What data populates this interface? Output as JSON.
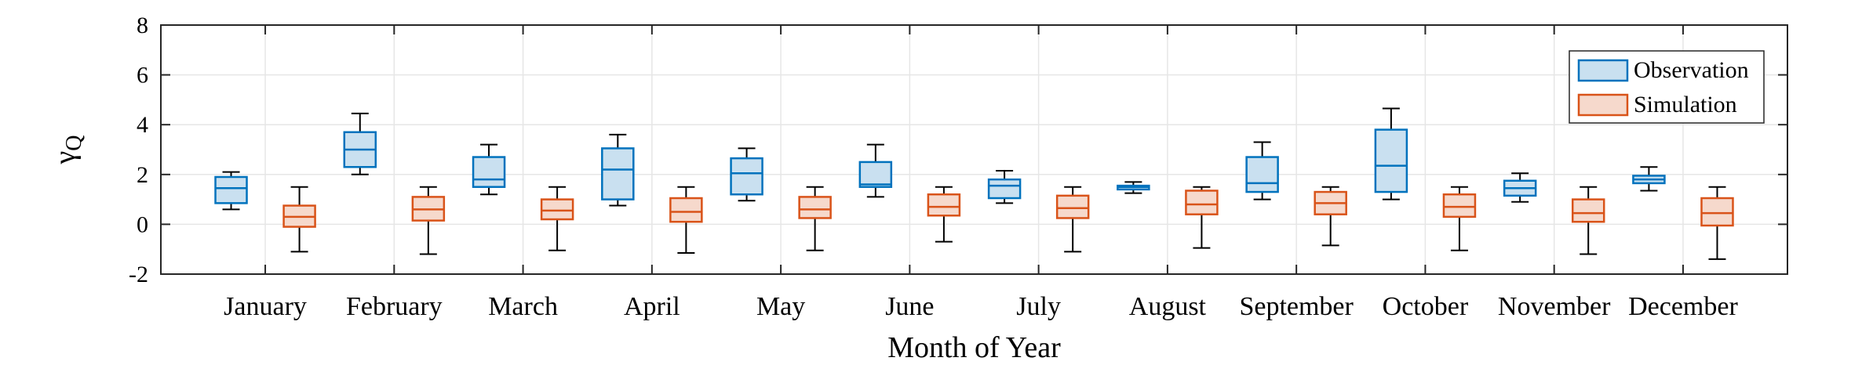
{
  "chart_data": {
    "type": "box",
    "title": "",
    "xlabel": "Month of Year",
    "ylabel_main": "γ",
    "ylabel_sub": "Q",
    "ylim": [
      -2,
      8
    ],
    "yticks": [
      -2,
      0,
      2,
      4,
      6,
      8
    ],
    "grid": true,
    "legend_position": "top-right",
    "categories": [
      "January",
      "February",
      "March",
      "April",
      "May",
      "June",
      "July",
      "August",
      "September",
      "October",
      "November",
      "December"
    ],
    "series": [
      {
        "name": "Observation",
        "stroke": "#0072BD",
        "fill": "#C9E0F0",
        "boxes": [
          {
            "whisker_low": 0.6,
            "q1": 0.85,
            "median": 1.45,
            "q3": 1.9,
            "whisker_high": 2.1
          },
          {
            "whisker_low": 2.0,
            "q1": 2.3,
            "median": 3.0,
            "q3": 3.7,
            "whisker_high": 4.45
          },
          {
            "whisker_low": 1.2,
            "q1": 1.5,
            "median": 1.8,
            "q3": 2.7,
            "whisker_high": 3.2
          },
          {
            "whisker_low": 0.75,
            "q1": 1.0,
            "median": 2.2,
            "q3": 3.05,
            "whisker_high": 3.6
          },
          {
            "whisker_low": 0.95,
            "q1": 1.2,
            "median": 2.05,
            "q3": 2.65,
            "whisker_high": 3.05
          },
          {
            "whisker_low": 1.1,
            "q1": 1.5,
            "median": 1.6,
            "q3": 2.5,
            "whisker_high": 3.2
          },
          {
            "whisker_low": 0.85,
            "q1": 1.05,
            "median": 1.55,
            "q3": 1.8,
            "whisker_high": 2.15
          },
          {
            "whisker_low": 1.25,
            "q1": 1.4,
            "median": 1.5,
            "q3": 1.55,
            "whisker_high": 1.7
          },
          {
            "whisker_low": 1.0,
            "q1": 1.3,
            "median": 1.65,
            "q3": 2.7,
            "whisker_high": 3.3
          },
          {
            "whisker_low": 1.0,
            "q1": 1.3,
            "median": 2.35,
            "q3": 3.8,
            "whisker_high": 4.65
          },
          {
            "whisker_low": 0.9,
            "q1": 1.15,
            "median": 1.45,
            "q3": 1.75,
            "whisker_high": 2.05
          },
          {
            "whisker_low": 1.35,
            "q1": 1.65,
            "median": 1.8,
            "q3": 1.95,
            "whisker_high": 2.3
          }
        ]
      },
      {
        "name": "Simulation",
        "stroke": "#D95319",
        "fill": "#F6D9CC",
        "boxes": [
          {
            "whisker_low": -1.1,
            "q1": -0.1,
            "median": 0.3,
            "q3": 0.75,
            "whisker_high": 1.5
          },
          {
            "whisker_low": -1.2,
            "q1": 0.15,
            "median": 0.6,
            "q3": 1.1,
            "whisker_high": 1.5
          },
          {
            "whisker_low": -1.05,
            "q1": 0.2,
            "median": 0.55,
            "q3": 1.0,
            "whisker_high": 1.5
          },
          {
            "whisker_low": -1.15,
            "q1": 0.1,
            "median": 0.5,
            "q3": 1.05,
            "whisker_high": 1.5
          },
          {
            "whisker_low": -1.05,
            "q1": 0.25,
            "median": 0.6,
            "q3": 1.1,
            "whisker_high": 1.5
          },
          {
            "whisker_low": -0.7,
            "q1": 0.35,
            "median": 0.7,
            "q3": 1.2,
            "whisker_high": 1.5
          },
          {
            "whisker_low": -1.1,
            "q1": 0.25,
            "median": 0.65,
            "q3": 1.15,
            "whisker_high": 1.5
          },
          {
            "whisker_low": -0.95,
            "q1": 0.4,
            "median": 0.8,
            "q3": 1.35,
            "whisker_high": 1.5
          },
          {
            "whisker_low": -0.85,
            "q1": 0.4,
            "median": 0.85,
            "q3": 1.3,
            "whisker_high": 1.5
          },
          {
            "whisker_low": -1.05,
            "q1": 0.3,
            "median": 0.7,
            "q3": 1.2,
            "whisker_high": 1.5
          },
          {
            "whisker_low": -1.2,
            "q1": 0.1,
            "median": 0.45,
            "q3": 1.0,
            "whisker_high": 1.5
          },
          {
            "whisker_low": -1.4,
            "q1": -0.05,
            "median": 0.45,
            "q3": 1.05,
            "whisker_high": 1.5
          }
        ]
      }
    ]
  }
}
